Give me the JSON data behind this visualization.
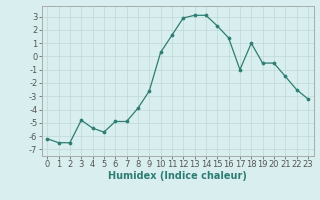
{
  "x": [
    0,
    1,
    2,
    3,
    4,
    5,
    6,
    7,
    8,
    9,
    10,
    11,
    12,
    13,
    14,
    15,
    16,
    17,
    18,
    19,
    20,
    21,
    22,
    23
  ],
  "y": [
    -6.2,
    -6.5,
    -6.5,
    -4.8,
    -5.4,
    -5.7,
    -4.9,
    -4.9,
    -3.9,
    -2.6,
    0.3,
    1.6,
    2.9,
    3.1,
    3.1,
    2.3,
    1.4,
    -1.0,
    1.0,
    -0.5,
    -0.5,
    -1.5,
    -2.5,
    -3.2
  ],
  "line_color": "#2e7d72",
  "marker": "o",
  "markersize": 2.2,
  "linewidth": 0.9,
  "xlabel": "Humidex (Indice chaleur)",
  "xlim": [
    -0.5,
    23.5
  ],
  "ylim": [
    -7.5,
    3.8
  ],
  "yticks": [
    -7,
    -6,
    -5,
    -4,
    -3,
    -2,
    -1,
    0,
    1,
    2,
    3
  ],
  "xticks": [
    0,
    1,
    2,
    3,
    4,
    5,
    6,
    7,
    8,
    9,
    10,
    11,
    12,
    13,
    14,
    15,
    16,
    17,
    18,
    19,
    20,
    21,
    22,
    23
  ],
  "xtick_labels": [
    "0",
    "1",
    "2",
    "3",
    "4",
    "5",
    "6",
    "7",
    "8",
    "9",
    "10",
    "11",
    "12",
    "13",
    "14",
    "15",
    "16",
    "17",
    "18",
    "19",
    "20",
    "21",
    "22",
    "23"
  ],
  "bg_color": "#d9efef",
  "grid_color": "#c0d8d8",
  "tick_fontsize": 6,
  "xlabel_fontsize": 7,
  "xlabel_fontweight": "bold",
  "spine_color": "#aaaaaa"
}
